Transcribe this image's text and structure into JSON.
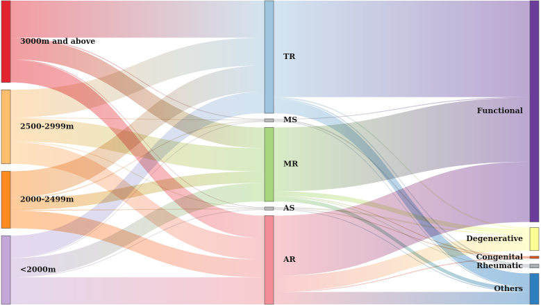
{
  "chart_data": {
    "type": "sankey",
    "columns": [
      {
        "nodes": [
          "3000m and above",
          "2500-2999m",
          "2000-2499m",
          "<2000m"
        ]
      },
      {
        "nodes": [
          "TR",
          "MS",
          "MR",
          "AS",
          "AR"
        ]
      },
      {
        "nodes": [
          "Functional",
          "Degenerative",
          "Congenital",
          "Rheumatic",
          "Others"
        ]
      }
    ],
    "nodes": [
      {
        "id": "3000m and above",
        "label": "3000m and above",
        "color": "#e3232f"
      },
      {
        "id": "2500-2999m",
        "label": "2500-2999m",
        "color": "#ffbf6e"
      },
      {
        "id": "2000-2499m",
        "label": "2000-2499m",
        "color": "#ff8a1f"
      },
      {
        "id": "<2000m",
        "label": "<2000m",
        "color": "#c3a7d8"
      },
      {
        "id": "TR",
        "label": "TR",
        "color": "#9ec4de"
      },
      {
        "id": "MS",
        "label": "MS",
        "color": "#b9b9b9"
      },
      {
        "id": "MR",
        "label": "MR",
        "color": "#a7d67e"
      },
      {
        "id": "AS",
        "label": "AS",
        "color": "#b9b9b9"
      },
      {
        "id": "AR",
        "label": "AR",
        "color": "#f28f96"
      },
      {
        "id": "Functional",
        "label": "Functional",
        "color": "#6a3d9a"
      },
      {
        "id": "Degenerative",
        "label": "Degenerative",
        "color": "#fdfd96"
      },
      {
        "id": "Congenital",
        "label": "Congenital",
        "color": "#d9541e"
      },
      {
        "id": "Rheumatic",
        "label": "Rheumatic",
        "color": "#aab2b8"
      },
      {
        "id": "Others",
        "label": "Others",
        "color": "#2f7fc0"
      }
    ],
    "links": [
      {
        "source": "3000m and above",
        "target": "TR",
        "value": 48
      },
      {
        "source": "3000m and above",
        "target": "MS",
        "value": 1
      },
      {
        "source": "3000m and above",
        "target": "MR",
        "value": 27
      },
      {
        "source": "3000m and above",
        "target": "AS",
        "value": 1
      },
      {
        "source": "3000m and above",
        "target": "AR",
        "value": 29
      },
      {
        "source": "2500-2999m",
        "target": "TR",
        "value": 36
      },
      {
        "source": "2500-2999m",
        "target": "MS",
        "value": 1
      },
      {
        "source": "2500-2999m",
        "target": "MR",
        "value": 30
      },
      {
        "source": "2500-2999m",
        "target": "AS",
        "value": 1
      },
      {
        "source": "2500-2999m",
        "target": "AR",
        "value": 28
      },
      {
        "source": "2000-2499m",
        "target": "TR",
        "value": 34
      },
      {
        "source": "2000-2499m",
        "target": "MS",
        "value": 1
      },
      {
        "source": "2000-2499m",
        "target": "MR",
        "value": 15
      },
      {
        "source": "2000-2499m",
        "target": "AS",
        "value": 1
      },
      {
        "source": "2000-2499m",
        "target": "AR",
        "value": 23
      },
      {
        "source": "<2000m",
        "target": "TR",
        "value": 28
      },
      {
        "source": "<2000m",
        "target": "MS",
        "value": 1
      },
      {
        "source": "<2000m",
        "target": "MR",
        "value": 24
      },
      {
        "source": "<2000m",
        "target": "AS",
        "value": 1
      },
      {
        "source": "<2000m",
        "target": "AR",
        "value": 35
      },
      {
        "source": "TR",
        "target": "Functional",
        "value": 125
      },
      {
        "source": "TR",
        "target": "Degenerative",
        "value": 2
      },
      {
        "source": "TR",
        "target": "Rheumatic",
        "value": 2
      },
      {
        "source": "TR",
        "target": "Others",
        "value": 17
      },
      {
        "source": "MS",
        "target": "Functional",
        "value": 1
      },
      {
        "source": "MS",
        "target": "Rheumatic",
        "value": 2
      },
      {
        "source": "MS",
        "target": "Others",
        "value": 1
      },
      {
        "source": "MR",
        "target": "Functional",
        "value": 83
      },
      {
        "source": "MR",
        "target": "Degenerative",
        "value": 6
      },
      {
        "source": "MR",
        "target": "Congenital",
        "value": 1
      },
      {
        "source": "MR",
        "target": "Rheumatic",
        "value": 1
      },
      {
        "source": "MR",
        "target": "Others",
        "value": 5
      },
      {
        "source": "AS",
        "target": "Degenerative",
        "value": 2
      },
      {
        "source": "AS",
        "target": "Congenital",
        "value": 1
      },
      {
        "source": "AS",
        "target": "Others",
        "value": 1
      },
      {
        "source": "AR",
        "target": "Functional",
        "value": 78
      },
      {
        "source": "AR",
        "target": "Degenerative",
        "value": 20
      },
      {
        "source": "AR",
        "target": "Congenital",
        "value": 1
      },
      {
        "source": "AR",
        "target": "Others",
        "value": 16
      }
    ]
  }
}
